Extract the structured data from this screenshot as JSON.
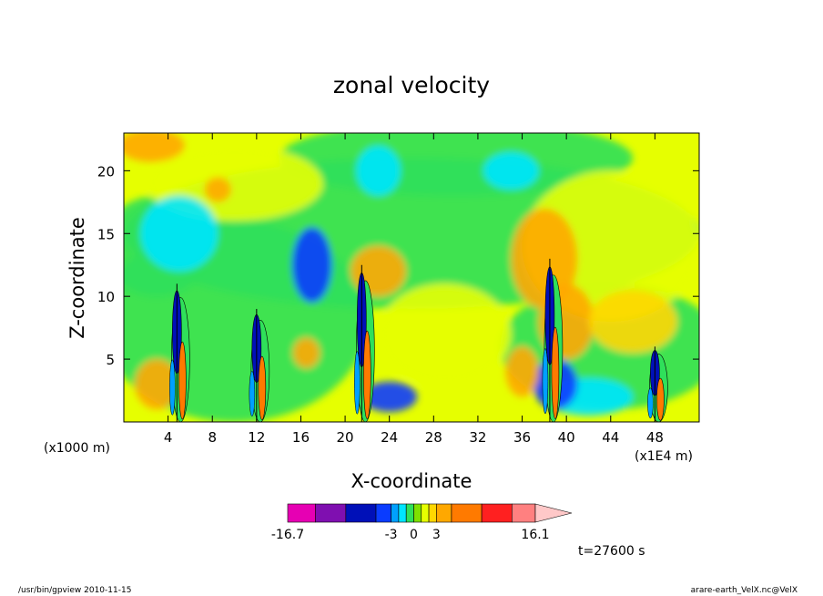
{
  "chart_data": {
    "type": "heatmap",
    "title": "zonal velocity",
    "xlabel": "X-coordinate",
    "ylabel": "Z-coordinate",
    "x_units_left": "(x1000 m)",
    "x_units_right": "(x1E4 m)",
    "xlim": [
      0,
      52
    ],
    "ylim": [
      0,
      23
    ],
    "x_ticks": [
      4,
      8,
      12,
      16,
      20,
      24,
      28,
      32,
      36,
      40,
      44,
      48
    ],
    "y_ticks": [
      5,
      10,
      15,
      20
    ],
    "colorbar": {
      "labels": [
        {
          "text": "-16.7",
          "value": -16.7
        },
        {
          "text": "-3",
          "value": -3
        },
        {
          "text": "0",
          "value": 0
        },
        {
          "text": "3",
          "value": 3
        },
        {
          "text": "16.1",
          "value": 16.1
        }
      ],
      "boundaries": [
        -16.7,
        -13,
        -9,
        -5,
        -3,
        -2,
        -1,
        0,
        1,
        2,
        3,
        5,
        9,
        13,
        16.1
      ],
      "colors": [
        "#e600b3",
        "#7f0fb0",
        "#0010b8",
        "#0a3cff",
        "#00a0ff",
        "#00e5ff",
        "#2fe05a",
        "#7fe000",
        "#e6ff00",
        "#ffd700",
        "#ffa800",
        "#ff7a00",
        "#ff2020",
        "#ff8080"
      ],
      "overflow_color": "#ffc8c8"
    },
    "time_label": "t=27600 s",
    "features": [
      {
        "x": 4.8,
        "z_top": 11,
        "kind": "updraft"
      },
      {
        "x": 12,
        "z_top": 9,
        "kind": "updraft"
      },
      {
        "x": 21.5,
        "z_top": 12.5,
        "kind": "updraft"
      },
      {
        "x": 38.5,
        "z_top": 13,
        "kind": "updraft"
      },
      {
        "x": 48,
        "z_top": 6,
        "kind": "updraft"
      }
    ]
  },
  "footer": {
    "left": "/usr/bin/gpview   2010-11-15",
    "right": "arare-earth_VelX.nc@VelX"
  }
}
